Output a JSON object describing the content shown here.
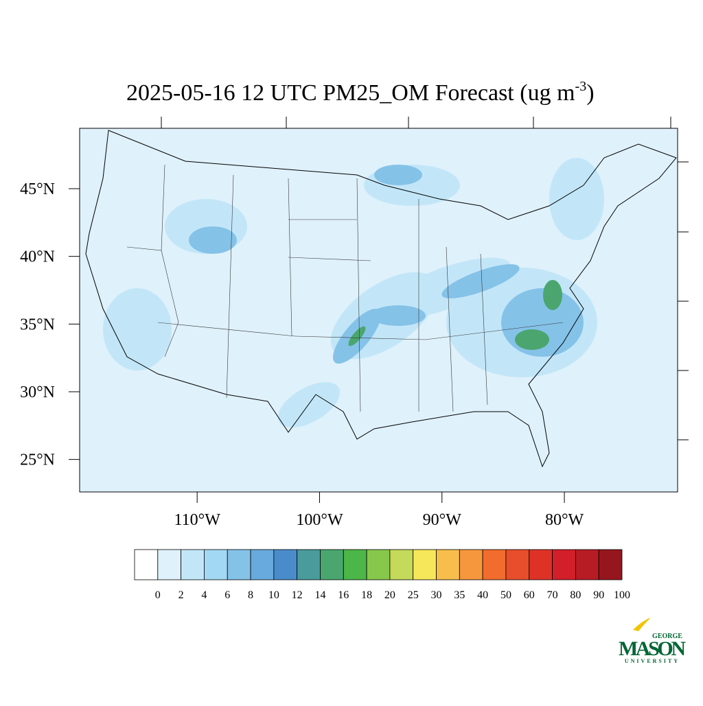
{
  "title": "2025-05-16 12 UTC PM25_OM Forecast (ug m",
  "title_sup": "-3",
  "title_end": ")",
  "map": {
    "xlim": [
      -119.6,
      -70.75
    ],
    "ylim": [
      22.6,
      49.46
    ],
    "xticks": [
      {
        "value": -110,
        "label": "110°W"
      },
      {
        "value": -100,
        "label": "100°W"
      },
      {
        "value": -90,
        "label": "90°W"
      },
      {
        "value": -80,
        "label": "80°W"
      }
    ],
    "yticks": [
      {
        "value": 25,
        "label": "25°N"
      },
      {
        "value": 30,
        "label": "30°N"
      },
      {
        "value": 35,
        "label": "35°N"
      },
      {
        "value": 40,
        "label": "40°N"
      },
      {
        "value": 45,
        "label": "45°N"
      }
    ]
  },
  "colorbar": {
    "levels": [
      0,
      2,
      4,
      6,
      8,
      10,
      12,
      14,
      16,
      18,
      20,
      25,
      30,
      35,
      40,
      50,
      60,
      70,
      80,
      90,
      100
    ],
    "colors": [
      "#ffffff",
      "#dff1fb",
      "#c2e6f8",
      "#a3d8f4",
      "#85c2e8",
      "#68aadd",
      "#4a8ccb",
      "#4a9b9c",
      "#4aa66e",
      "#4cb648",
      "#86c74c",
      "#c5d95a",
      "#f6e65a",
      "#f8be4c",
      "#f6973d",
      "#f26d2d",
      "#e84e2b",
      "#de3227",
      "#d21f2a",
      "#b71c25",
      "#96161d"
    ]
  },
  "logo": {
    "top": "GEORGE",
    "main": "MASON",
    "bottom": "UNIVERSITY"
  }
}
